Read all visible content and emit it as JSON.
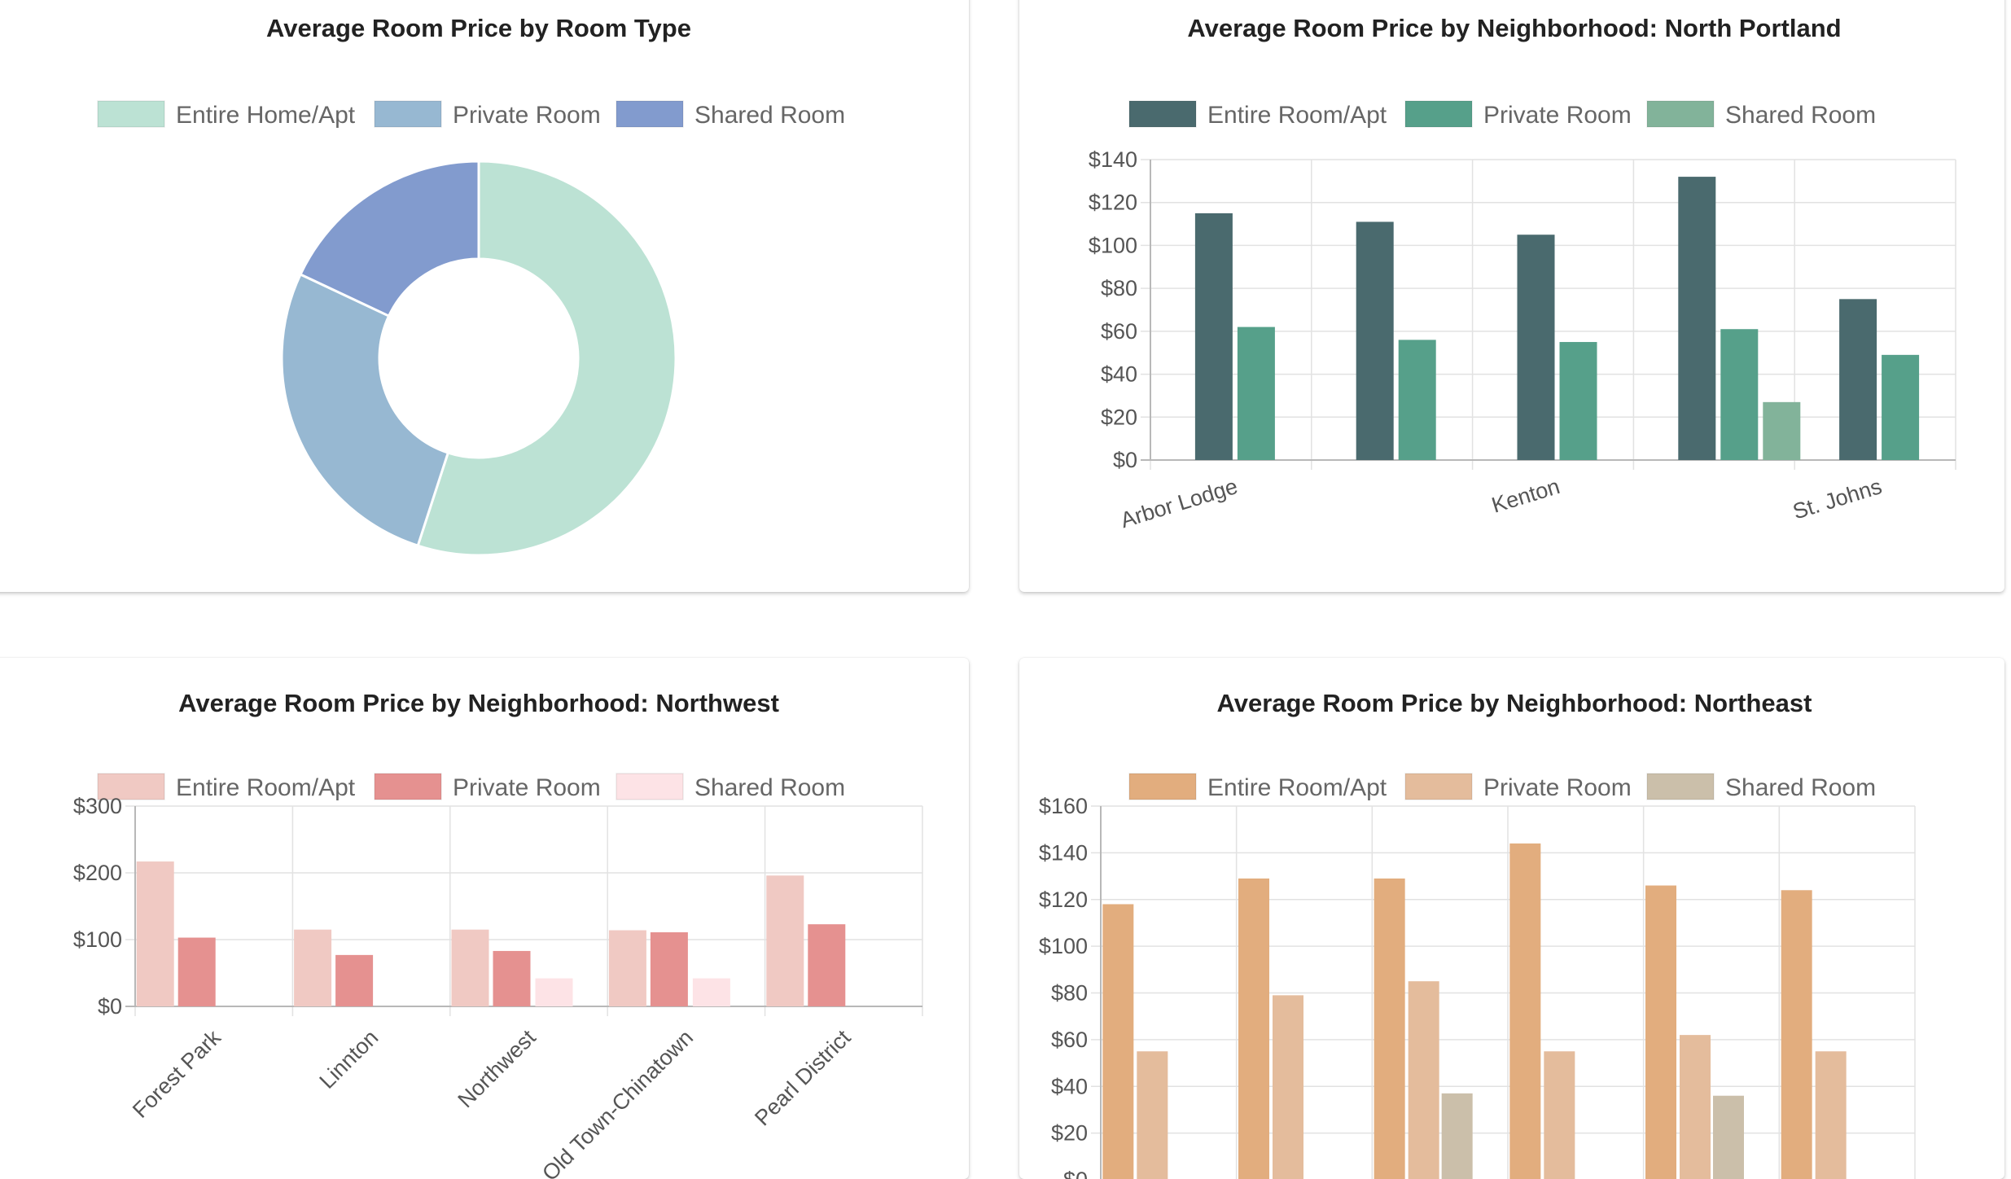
{
  "charts": [
    {
      "title": "Average Room Price by Room Type",
      "chart_data": {
        "type": "pie",
        "variant": "doughnut",
        "title": "Average Room Price by Room Type",
        "labels": [
          "Entire Home/Apt",
          "Private Room",
          "Shared Room"
        ],
        "values": [
          55,
          27,
          18
        ],
        "colors": [
          "#bce2d4",
          "#97b8d2",
          "#829bce"
        ],
        "legend": "top"
      }
    },
    {
      "title": "Average Room Price by Neighborhood: North Portland",
      "chart_data": {
        "type": "bar",
        "title": "Average Room Price by Neighborhood: North Portland",
        "categories": [
          "Arbor Lodge",
          "",
          "Kenton",
          "",
          "St. Johns"
        ],
        "series": [
          {
            "name": "Entire Room/Apt",
            "values": [
              115,
              111,
              105,
              132,
              75
            ],
            "color": "#4a6a6e"
          },
          {
            "name": "Private Room",
            "values": [
              62,
              56,
              55,
              61,
              49
            ],
            "color": "#56a08a"
          },
          {
            "name": "Shared Room",
            "values": [
              0,
              0,
              0,
              27,
              0
            ],
            "color": "#82b39a"
          }
        ],
        "ylim": [
          0,
          140
        ],
        "ystep": 20,
        "yprefix": "$",
        "grid": true,
        "legend": "top"
      }
    },
    {
      "title": "Average Room Price by Neighborhood: Northwest",
      "chart_data": {
        "type": "bar",
        "title": "Average Room Price by Neighborhood: Northwest",
        "categories": [
          "Forest Park",
          "Linnton",
          "Northwest",
          "Old Town-Chinatown",
          "Pearl District"
        ],
        "series": [
          {
            "name": "Entire Room/Apt",
            "values": [
              217,
              115,
              115,
              114,
              196
            ],
            "color": "#f0c9c3"
          },
          {
            "name": "Private Room",
            "values": [
              103,
              77,
              83,
              111,
              123
            ],
            "color": "#e59190"
          },
          {
            "name": "Shared Room",
            "values": [
              0,
              0,
              42,
              42,
              0
            ],
            "color": "#fde3e6"
          }
        ],
        "ylim": [
          0,
          300
        ],
        "ystep": 100,
        "yprefix": "$",
        "grid": true,
        "legend": "top"
      }
    },
    {
      "title": "Average Room Price by Neighborhood: Northeast",
      "chart_data": {
        "type": "bar",
        "title": "Average Room Price by Neighborhood: Northeast",
        "categories": [
          "",
          "",
          "",
          "",
          "",
          ""
        ],
        "series": [
          {
            "name": "Entire Room/Apt",
            "values": [
              118,
              129,
              129,
              144,
              126,
              124
            ],
            "color": "#e2ad7e"
          },
          {
            "name": "Private Room",
            "values": [
              55,
              79,
              85,
              55,
              62,
              55
            ],
            "color": "#e4bc9c"
          },
          {
            "name": "Shared Room",
            "values": [
              0,
              0,
              37,
              0,
              36,
              0
            ],
            "color": "#cbbfaa"
          }
        ],
        "ylim": [
          0,
          160
        ],
        "ystep": 20,
        "yprefix": "$",
        "grid": true,
        "legend": "top"
      }
    }
  ]
}
